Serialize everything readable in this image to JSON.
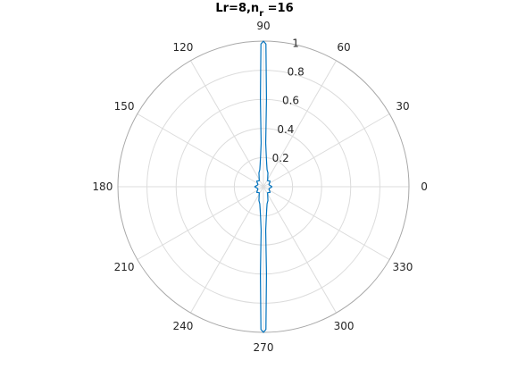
{
  "title": {
    "main": "Lr=8,n",
    "sub": "r",
    "tail": " =16"
  },
  "chart_data": {
    "type": "polar-line",
    "title": "Lr=8,n_r =16",
    "theta_unit": "degrees",
    "theta_ticks": [
      0,
      30,
      60,
      90,
      120,
      150,
      180,
      210,
      240,
      270,
      300,
      330
    ],
    "r_ticks": [
      0.2,
      0.4,
      0.6,
      0.8,
      1
    ],
    "r_tick_labels": [
      "0.2",
      "0.4",
      "0.6",
      "0.8",
      "1"
    ],
    "rlim": [
      0,
      1
    ],
    "grid": true,
    "series": [
      {
        "color": "#0072bd",
        "theta": [
          0,
          20,
          40,
          55,
          65,
          72,
          78,
          82,
          85,
          87,
          88,
          89,
          90,
          91,
          92,
          93,
          95,
          98,
          102,
          108,
          115,
          125,
          140,
          160,
          180,
          200,
          220,
          235,
          245,
          252,
          258,
          262,
          265,
          267,
          268,
          269,
          270,
          271,
          272,
          273,
          275,
          278,
          282,
          288,
          295,
          305,
          320,
          340,
          360
        ],
        "r": [
          0.06,
          0.04,
          0.06,
          0.05,
          0.07,
          0.1,
          0.12,
          0.16,
          0.22,
          0.3,
          0.6,
          0.98,
          1.0,
          0.98,
          0.6,
          0.3,
          0.22,
          0.16,
          0.12,
          0.1,
          0.07,
          0.05,
          0.06,
          0.04,
          0.06,
          0.04,
          0.06,
          0.05,
          0.07,
          0.1,
          0.12,
          0.16,
          0.22,
          0.3,
          0.6,
          0.98,
          1.0,
          0.98,
          0.6,
          0.3,
          0.22,
          0.16,
          0.12,
          0.1,
          0.07,
          0.05,
          0.06,
          0.04,
          0.06
        ]
      }
    ]
  }
}
